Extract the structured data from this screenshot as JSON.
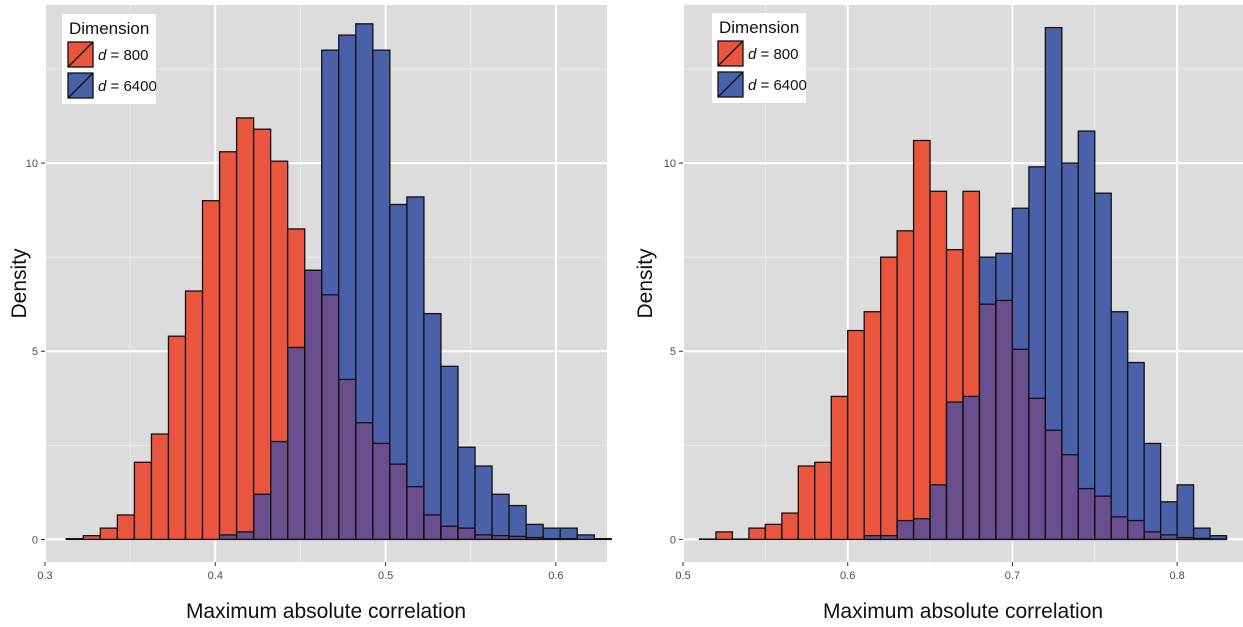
{
  "colors": {
    "panel_bg": "#dcdcdc",
    "grid_major": "#ffffff",
    "grid_minor": "#ececec",
    "bar_outline": "#111111",
    "d800": "#e9553e",
    "d6400": "#4a60a8",
    "overlap": "#6a4f8e"
  },
  "legend": {
    "title": "Dimension",
    "entries": [
      {
        "var": "d",
        "label": " = 800",
        "color": "#e9553e"
      },
      {
        "var": "d",
        "label": " = 6400",
        "color": "#4a60a8"
      }
    ]
  },
  "chart_data": [
    {
      "type": "bar",
      "subtype": "overlaid-histogram",
      "xlabel": "Maximum absolute correlation",
      "ylabel": "Density",
      "xlim": [
        0.3,
        0.63
      ],
      "ylim": [
        -0.6,
        14.2
      ],
      "xticks": [
        0.3,
        0.4,
        0.5,
        0.6
      ],
      "yticks": [
        0,
        5,
        10
      ],
      "xtick_labels": [
        "0.3",
        "0.4",
        "0.5",
        "0.6"
      ],
      "ytick_labels": [
        "0",
        "5",
        "10"
      ],
      "bin_start": 0.3125,
      "bin_width": 0.01,
      "series": [
        {
          "name": "d = 800",
          "values": [
            0.02,
            0.1,
            0.3,
            0.65,
            2.05,
            2.8,
            5.4,
            6.6,
            9.0,
            10.3,
            11.2,
            10.9,
            10.05,
            8.25,
            7.15,
            6.5,
            4.25,
            3.1,
            2.55,
            2.0,
            1.4,
            0.65,
            0.35,
            0.3,
            0.12,
            0.1,
            0.08,
            0.05,
            0.02,
            0.02
          ]
        },
        {
          "name": "d = 6400",
          "values": [
            0,
            0,
            0,
            0,
            0,
            0,
            0,
            0,
            0,
            0.12,
            0.2,
            1.2,
            2.6,
            5.1,
            7.15,
            13.0,
            13.4,
            13.7,
            13.0,
            8.9,
            9.1,
            6.0,
            4.6,
            2.45,
            1.95,
            1.2,
            0.9,
            0.4,
            0.3,
            0.3,
            0.12,
            0.02
          ]
        }
      ]
    },
    {
      "type": "bar",
      "subtype": "overlaid-histogram",
      "xlabel": "Maximum absolute correlation",
      "ylabel": "Density",
      "xlim": [
        0.5,
        0.84
      ],
      "ylim": [
        -0.6,
        14.2
      ],
      "xticks": [
        0.5,
        0.6,
        0.7,
        0.8
      ],
      "yticks": [
        0,
        5,
        10
      ],
      "xtick_labels": [
        "0.5",
        "0.6",
        "0.7",
        "0.8"
      ],
      "ytick_labels": [
        "0",
        "5",
        "10"
      ],
      "bin_start": 0.51,
      "bin_width": 0.01,
      "series": [
        {
          "name": "d = 800",
          "values": [
            0.01,
            0.2,
            0.01,
            0.3,
            0.4,
            0.7,
            1.95,
            2.05,
            3.8,
            5.55,
            6.05,
            7.5,
            8.2,
            10.6,
            9.25,
            7.7,
            9.25,
            6.25,
            6.35,
            5.05,
            3.75,
            2.9,
            2.25,
            1.35,
            1.15,
            0.6,
            0.5,
            0.2,
            0.12,
            0.05,
            0.03,
            0.01
          ]
        },
        {
          "name": "d = 6400",
          "values": [
            0,
            0,
            0,
            0,
            0,
            0,
            0,
            0,
            0,
            0,
            0.1,
            0.1,
            0.5,
            0.55,
            1.45,
            3.65,
            3.8,
            7.5,
            7.6,
            8.8,
            9.9,
            13.6,
            10.0,
            10.85,
            9.2,
            6.05,
            4.7,
            2.55,
            1.0,
            1.45,
            0.3,
            0.1
          ]
        }
      ]
    }
  ]
}
